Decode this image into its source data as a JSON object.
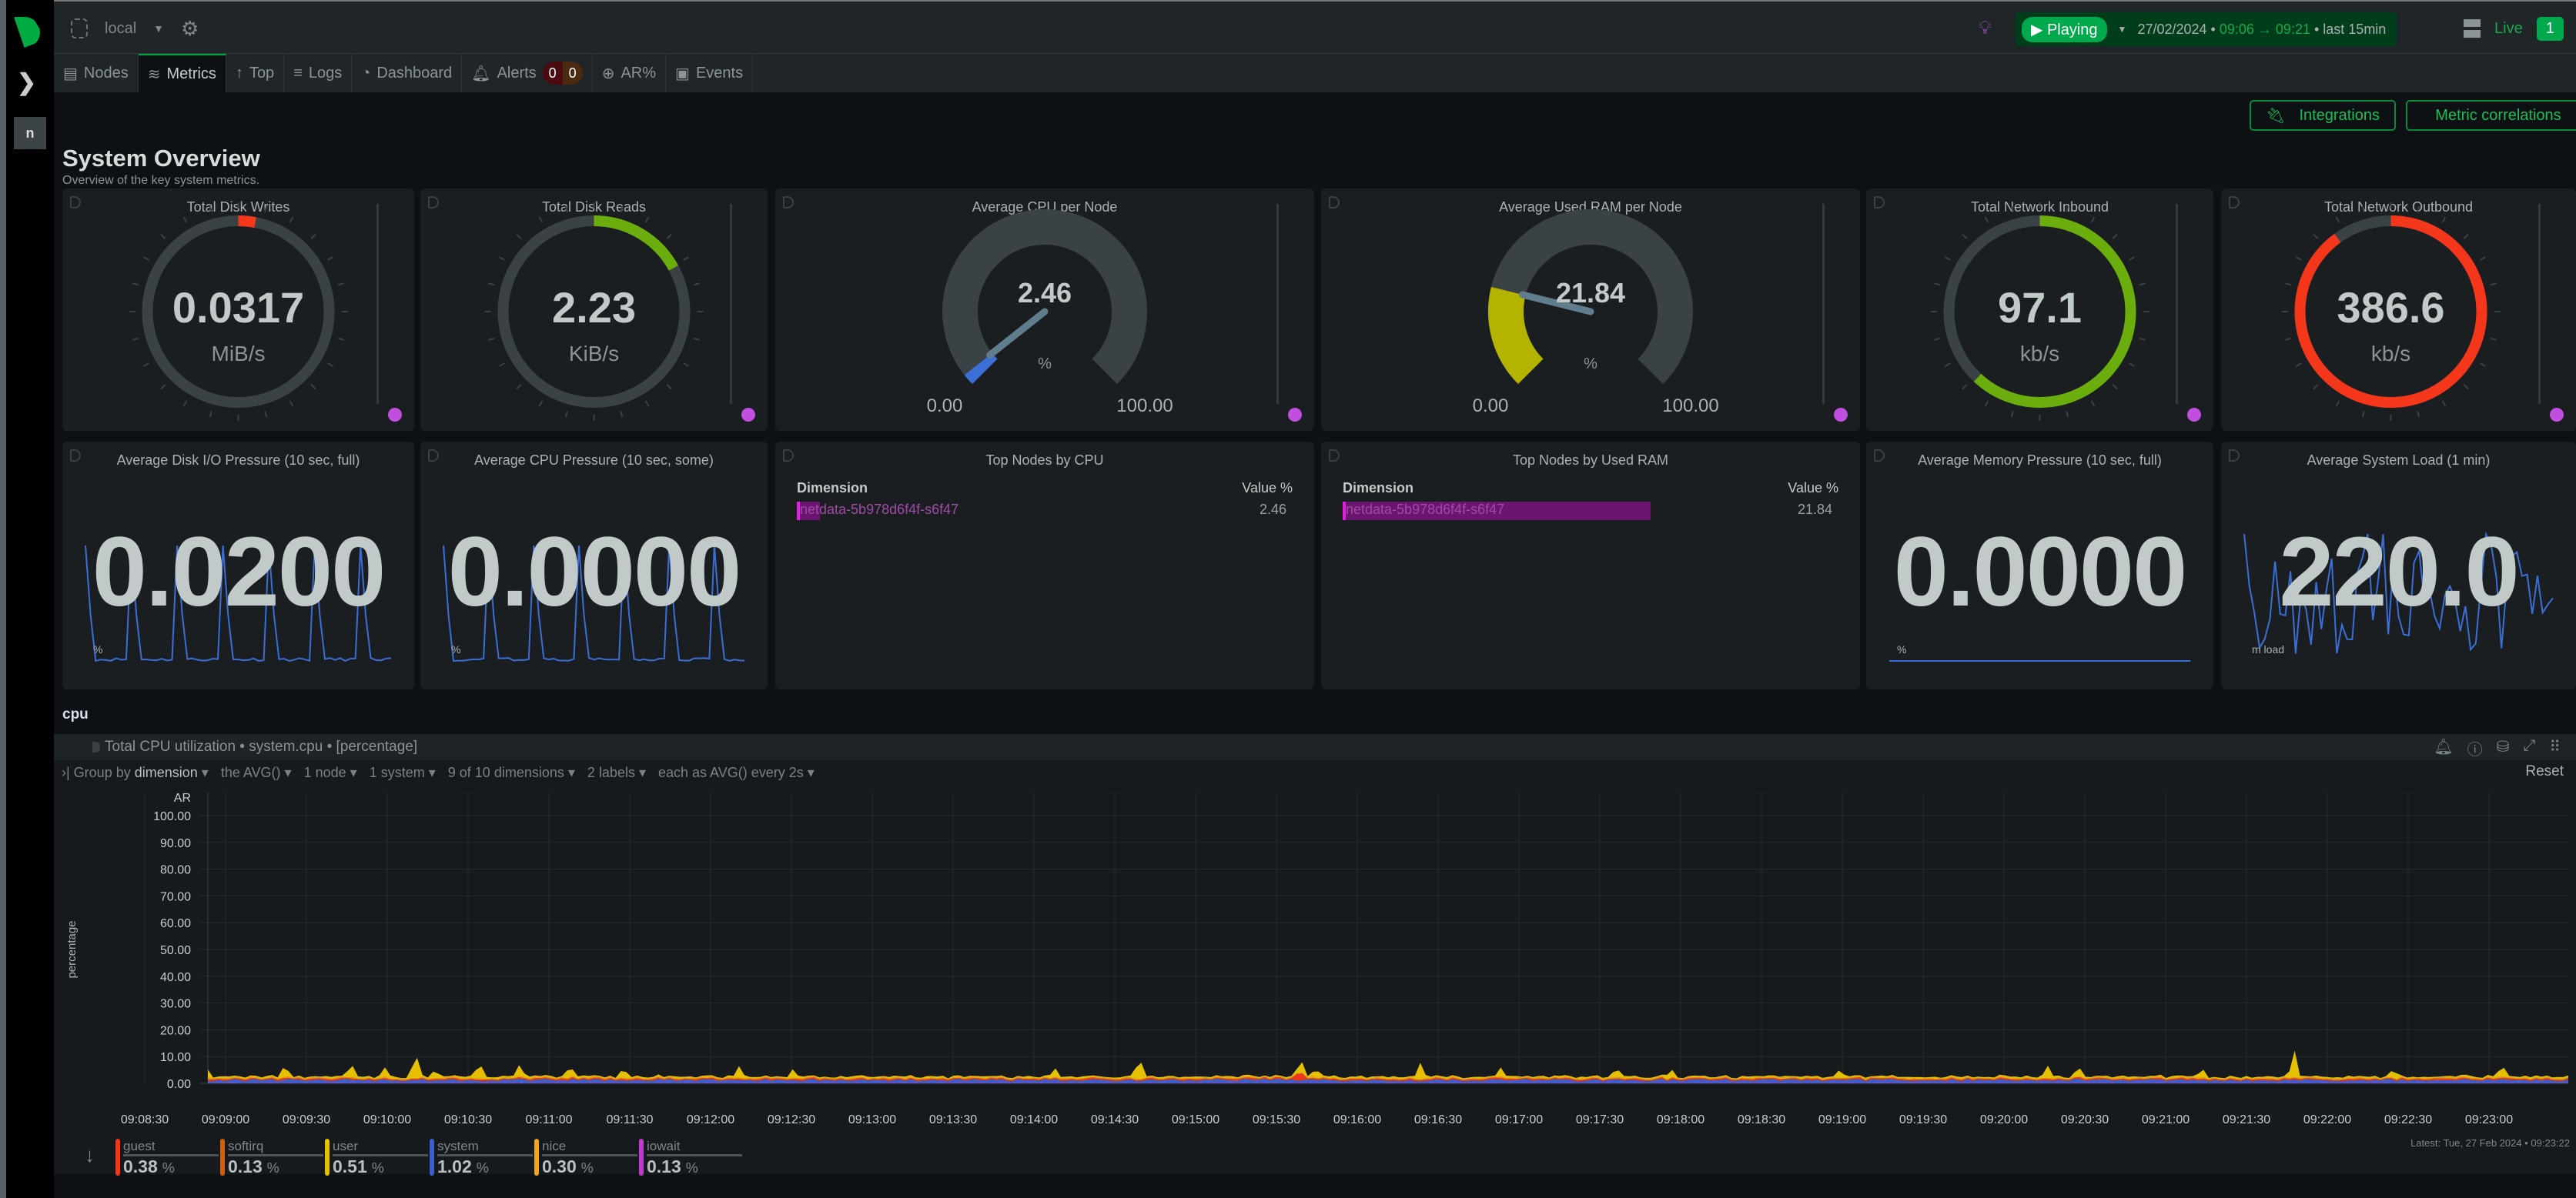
{
  "topbar": {
    "space": "local",
    "playing": "Playing",
    "date": "27/02/2024",
    "from": "09:06",
    "arrow": "→",
    "to": "09:21",
    "last": "last  15min",
    "live": "Live",
    "live_count": "1",
    "cut": "S"
  },
  "tabs": [
    {
      "label": "Nodes",
      "icon": "nodes-icon"
    },
    {
      "label": "Metrics",
      "icon": "metrics-icon"
    },
    {
      "label": "Top",
      "icon": "arrow-up-icon"
    },
    {
      "label": "Logs",
      "icon": "logs-icon"
    },
    {
      "label": "Dashboard",
      "icon": "dashboard-icon"
    },
    {
      "label": "Alerts",
      "icon": "bell-icon",
      "critical": "0",
      "warning": "0"
    },
    {
      "label": "AR%",
      "icon": "ar-icon"
    },
    {
      "label": "Events",
      "icon": "events-icon"
    }
  ],
  "sidebar": {
    "node_badge": "n"
  },
  "buttons": {
    "integrations": "Integrations",
    "metric_correlations": "Metric correlations"
  },
  "page": {
    "title": "System Overview",
    "subtitle": "Overview of the key system metrics."
  },
  "gauges": [
    {
      "title": "Total Disk Writes",
      "value": "0.0317",
      "unit": "MiB/s",
      "type": "ring",
      "fraction": 0.03,
      "color": "#f4361b"
    },
    {
      "title": "Total Disk Reads",
      "value": "2.23",
      "unit": "KiB/s",
      "type": "ring",
      "fraction": 0.17,
      "color": "#6aad0c"
    },
    {
      "title": "Average CPU per Node",
      "value": "2.46",
      "unit": "%",
      "type": "arc",
      "fraction": 0.0246,
      "min": "0.00",
      "max": "100.00",
      "color": "#3b6fd6"
    },
    {
      "title": "Average Used RAM per Node",
      "value": "21.84",
      "unit": "%",
      "type": "arc",
      "fraction": 0.2184,
      "min": "0.00",
      "max": "100.00",
      "color": "#b3b300"
    },
    {
      "title": "Total Network Inbound",
      "value": "97.1",
      "unit": "kb/s",
      "type": "ring",
      "fraction": 0.62,
      "color": "#6aad0c"
    },
    {
      "title": "Total Network Outbound",
      "value": "386.6",
      "unit": "kb/s",
      "type": "ring",
      "fraction": 0.9,
      "color": "#f4361b"
    }
  ],
  "numbers": [
    {
      "title": "Average Disk I/O Pressure (10 sec, full)",
      "value": "0.0200",
      "unit": "%"
    },
    {
      "title": "Average CPU Pressure (10 sec, some)",
      "value": "0.0000",
      "unit": "%"
    },
    {
      "title": "Average Memory Pressure (10 sec, full)",
      "value": "0.0000",
      "unit": "%"
    },
    {
      "title": "Average System Load (1 min)",
      "value": "220.0",
      "unit": "m load"
    }
  ],
  "top_cpu": {
    "title": "Top Nodes by CPU",
    "col1": "Dimension",
    "col2": "Value %",
    "row": "netdata-5b978d6f4f-s6f47",
    "value": "2.46",
    "fraction": 0.0246
  },
  "top_ram": {
    "title": "Top Nodes by Used RAM",
    "col1": "Dimension",
    "col2": "Value %",
    "row": "netdata-5b978d6f4f-s6f47",
    "value": "21.84",
    "fraction": 0.2184
  },
  "section": "cpu",
  "chart": {
    "title": "Total CPU utilization • system.cpu • [percentage]",
    "group_by": "Group by",
    "dimension": "dimension",
    "agg": "the AVG()",
    "nodes": "1 node",
    "instances": "1 system",
    "dims": "9 of 10 dimensions",
    "labels": "2 labels",
    "each": "each as AVG() every 2s",
    "reset": "Reset",
    "latest": "Latest:  Tue, 27 Feb 2024 • 09:23:22"
  },
  "chart_data": {
    "type": "area",
    "title": "Total CPU utilization",
    "ylabel": "percentage",
    "ylim": [
      0,
      100
    ],
    "y_ticks": [
      "100.00",
      "90.00",
      "80.00",
      "70.00",
      "60.00",
      "50.00",
      "40.00",
      "30.00",
      "20.00",
      "10.00",
      "0.00"
    ],
    "y_top_label": "AR",
    "x_ticks": [
      "09:08:30",
      "09:09:00",
      "09:09:30",
      "09:10:00",
      "09:10:30",
      "09:11:00",
      "09:11:30",
      "09:12:00",
      "09:12:30",
      "09:13:00",
      "09:13:30",
      "09:14:00",
      "09:14:30",
      "09:15:00",
      "09:15:30",
      "09:16:00",
      "09:16:30",
      "09:17:00",
      "09:17:30",
      "09:18:00",
      "09:18:30",
      "09:19:00",
      "09:19:30",
      "09:20:00",
      "09:20:30",
      "09:21:00",
      "09:21:30",
      "09:22:00",
      "09:22:30",
      "09:23:00"
    ],
    "series": [
      {
        "name": "guest",
        "value": "0.38",
        "color": "#f4361b"
      },
      {
        "name": "softirq",
        "value": "0.13",
        "color": "#d35e0c"
      },
      {
        "name": "user",
        "value": "0.51",
        "color": "#e5c000"
      },
      {
        "name": "system",
        "value": "1.02",
        "color": "#3b5fcf"
      },
      {
        "name": "nice",
        "value": "0.30",
        "color": "#f0a520"
      },
      {
        "name": "iowait",
        "value": "0.13",
        "color": "#c43ad0"
      }
    ],
    "unit": "%"
  }
}
